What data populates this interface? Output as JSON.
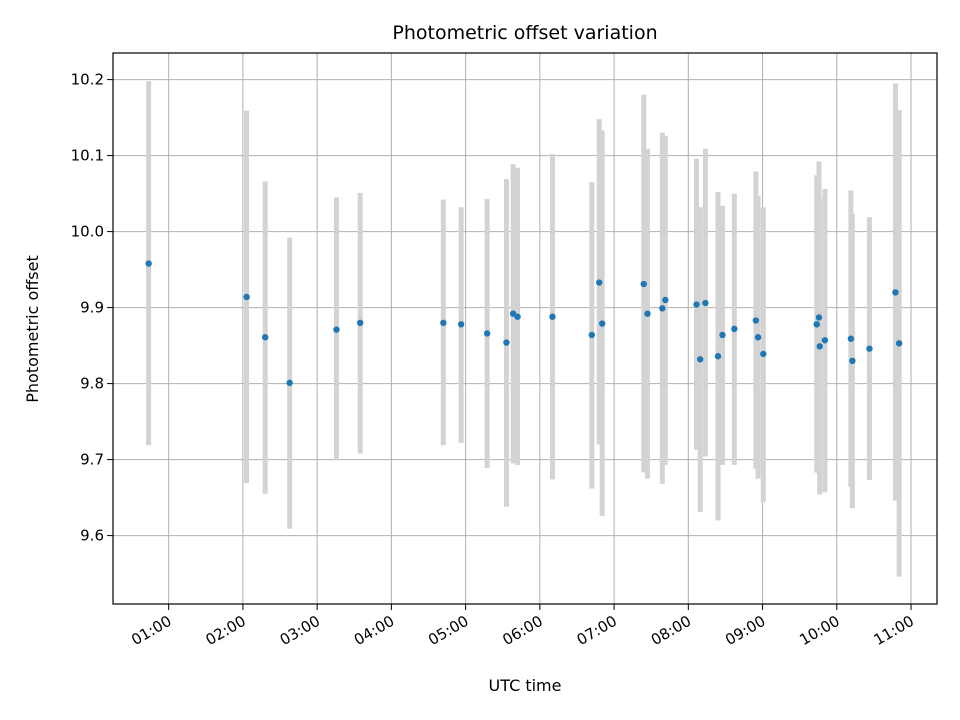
{
  "chart_data": {
    "type": "scatter",
    "title": "Photometric offset variation",
    "xlabel": "UTC time",
    "ylabel": "Photometric offset",
    "x_unit": "hours UTC",
    "xlim": [
      0.25,
      11.35
    ],
    "ylim": [
      9.51,
      10.235
    ],
    "grid": true,
    "colors": {
      "point": "#1f77b4",
      "errorbar": "#d3d3d3",
      "grid": "#b0b0b0"
    },
    "x_ticks": [
      {
        "value": 1,
        "label": "01:00"
      },
      {
        "value": 2,
        "label": "02:00"
      },
      {
        "value": 3,
        "label": "03:00"
      },
      {
        "value": 4,
        "label": "04:00"
      },
      {
        "value": 5,
        "label": "05:00"
      },
      {
        "value": 6,
        "label": "06:00"
      },
      {
        "value": 7,
        "label": "07:00"
      },
      {
        "value": 8,
        "label": "08:00"
      },
      {
        "value": 9,
        "label": "09:00"
      },
      {
        "value": 10,
        "label": "10:00"
      },
      {
        "value": 11,
        "label": "11:00"
      }
    ],
    "y_ticks": [
      {
        "value": 9.6,
        "label": "9.6"
      },
      {
        "value": 9.7,
        "label": "9.7"
      },
      {
        "value": 9.8,
        "label": "9.8"
      },
      {
        "value": 9.9,
        "label": "9.9"
      },
      {
        "value": 10.0,
        "label": "10.0"
      },
      {
        "value": 10.1,
        "label": "10.1"
      },
      {
        "value": 10.2,
        "label": "10.2"
      }
    ],
    "points": [
      {
        "x": 0.73,
        "y": 9.958,
        "lo": 9.719,
        "hi": 10.198
      },
      {
        "x": 2.05,
        "y": 9.914,
        "lo": 9.669,
        "hi": 10.159
      },
      {
        "x": 2.3,
        "y": 9.861,
        "lo": 9.655,
        "hi": 10.066
      },
      {
        "x": 2.63,
        "y": 9.801,
        "lo": 9.609,
        "hi": 9.992
      },
      {
        "x": 3.26,
        "y": 9.871,
        "lo": 9.699,
        "hi": 10.045
      },
      {
        "x": 3.58,
        "y": 9.88,
        "lo": 9.708,
        "hi": 10.051
      },
      {
        "x": 4.7,
        "y": 9.88,
        "lo": 9.719,
        "hi": 10.042
      },
      {
        "x": 4.94,
        "y": 9.878,
        "lo": 9.722,
        "hi": 10.032
      },
      {
        "x": 5.29,
        "y": 9.866,
        "lo": 9.689,
        "hi": 10.043
      },
      {
        "x": 5.55,
        "y": 9.854,
        "lo": 9.638,
        "hi": 10.069
      },
      {
        "x": 5.64,
        "y": 9.892,
        "lo": 9.695,
        "hi": 10.089
      },
      {
        "x": 5.7,
        "y": 9.888,
        "lo": 9.693,
        "hi": 10.084
      },
      {
        "x": 6.17,
        "y": 9.888,
        "lo": 9.674,
        "hi": 10.102
      },
      {
        "x": 6.7,
        "y": 9.864,
        "lo": 9.662,
        "hi": 10.065
      },
      {
        "x": 6.8,
        "y": 9.933,
        "lo": 9.72,
        "hi": 10.148
      },
      {
        "x": 6.84,
        "y": 9.879,
        "lo": 9.626,
        "hi": 10.133
      },
      {
        "x": 7.4,
        "y": 9.931,
        "lo": 9.683,
        "hi": 10.18
      },
      {
        "x": 7.45,
        "y": 9.892,
        "lo": 9.675,
        "hi": 10.109
      },
      {
        "x": 7.65,
        "y": 9.899,
        "lo": 9.668,
        "hi": 10.13
      },
      {
        "x": 7.69,
        "y": 9.91,
        "lo": 9.693,
        "hi": 10.126
      },
      {
        "x": 8.11,
        "y": 9.904,
        "lo": 9.713,
        "hi": 10.096
      },
      {
        "x": 8.16,
        "y": 9.832,
        "lo": 9.631,
        "hi": 10.032
      },
      {
        "x": 8.23,
        "y": 9.906,
        "lo": 9.704,
        "hi": 10.109
      },
      {
        "x": 8.4,
        "y": 9.836,
        "lo": 9.62,
        "hi": 10.052
      },
      {
        "x": 8.46,
        "y": 9.864,
        "lo": 9.693,
        "hi": 10.034
      },
      {
        "x": 8.62,
        "y": 9.872,
        "lo": 9.693,
        "hi": 10.05
      },
      {
        "x": 8.91,
        "y": 9.883,
        "lo": 9.688,
        "hi": 10.079
      },
      {
        "x": 8.94,
        "y": 9.861,
        "lo": 9.675,
        "hi": 10.047
      },
      {
        "x": 9.01,
        "y": 9.839,
        "lo": 9.644,
        "hi": 10.032
      },
      {
        "x": 9.73,
        "y": 9.878,
        "lo": 9.683,
        "hi": 10.074
      },
      {
        "x": 9.76,
        "y": 9.887,
        "lo": 9.682,
        "hi": 10.092
      },
      {
        "x": 9.77,
        "y": 9.849,
        "lo": 9.654,
        "hi": 10.044
      },
      {
        "x": 9.84,
        "y": 9.857,
        "lo": 9.657,
        "hi": 10.056
      },
      {
        "x": 10.19,
        "y": 9.859,
        "lo": 9.664,
        "hi": 10.054
      },
      {
        "x": 10.21,
        "y": 9.83,
        "lo": 9.636,
        "hi": 10.023
      },
      {
        "x": 10.44,
        "y": 9.846,
        "lo": 9.673,
        "hi": 10.019
      },
      {
        "x": 10.79,
        "y": 9.92,
        "lo": 9.646,
        "hi": 10.195
      },
      {
        "x": 10.84,
        "y": 9.853,
        "lo": 9.546,
        "hi": 10.16
      }
    ]
  }
}
